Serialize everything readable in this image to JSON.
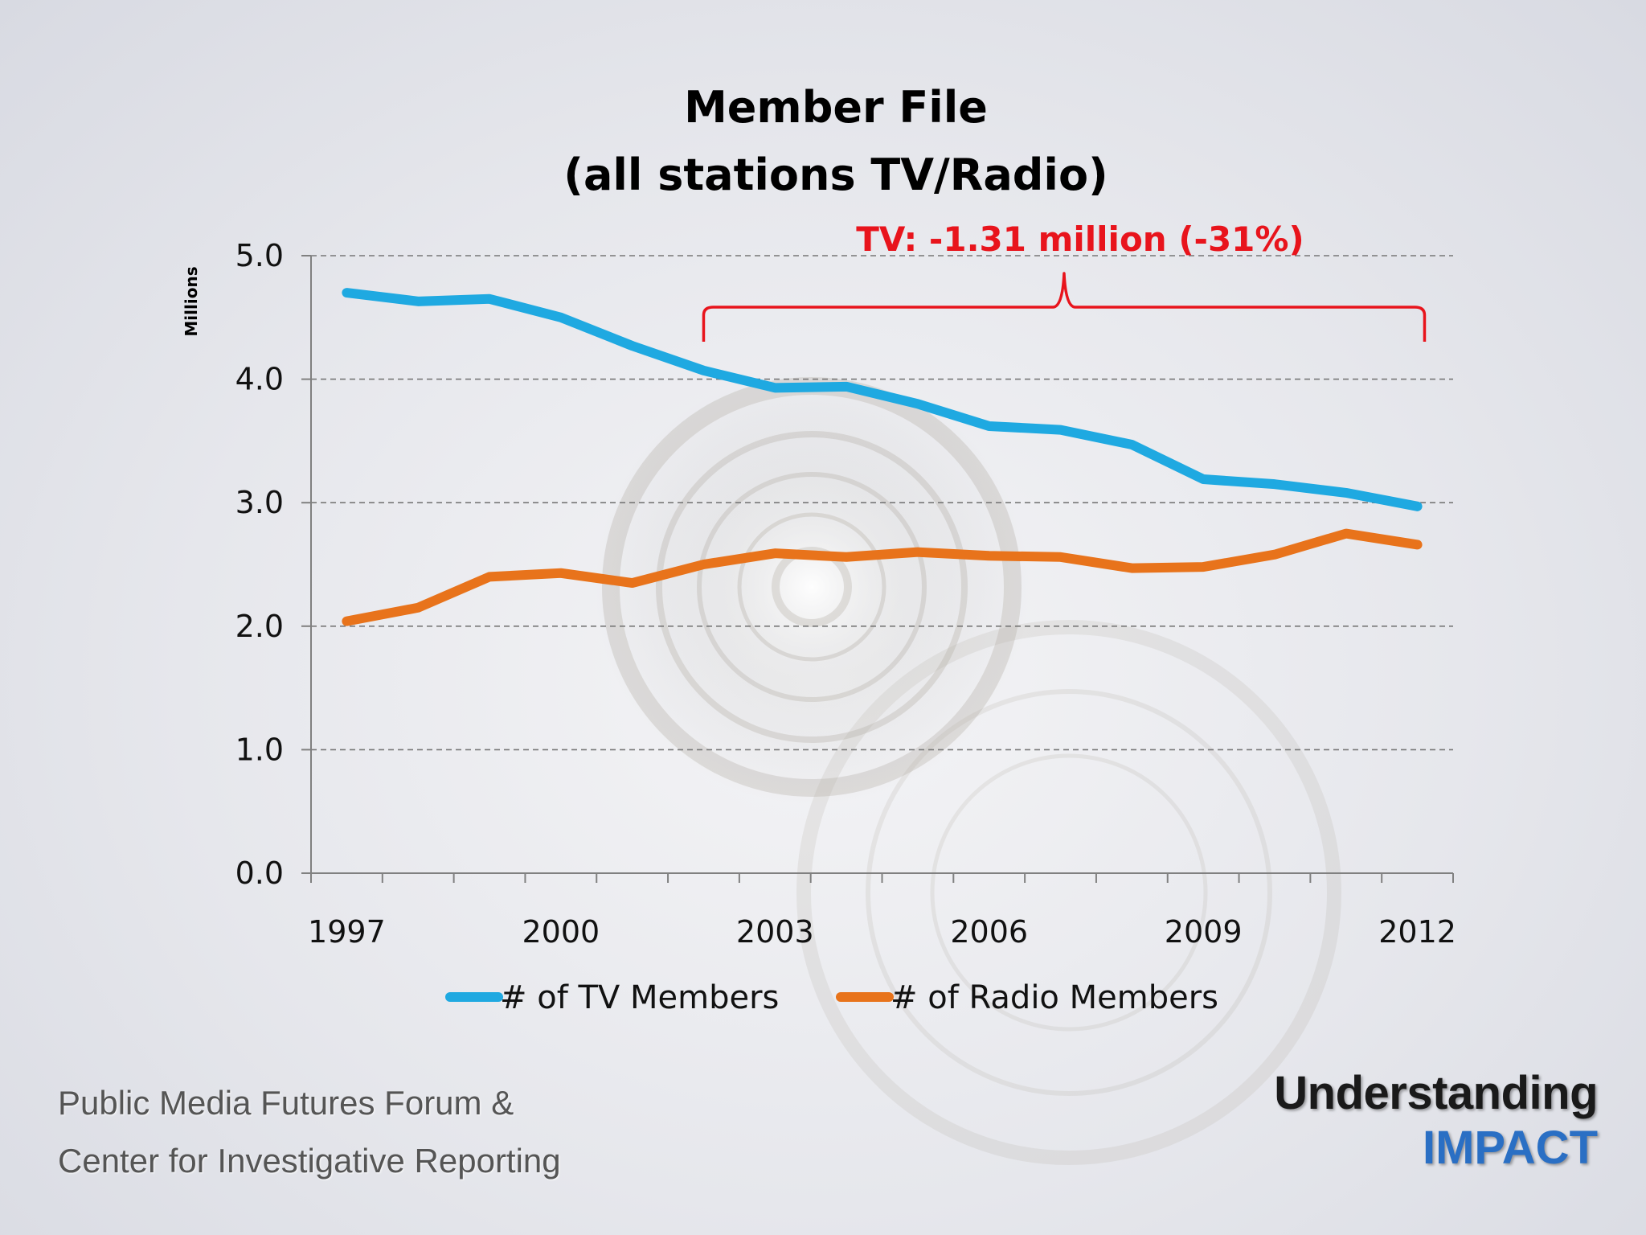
{
  "chart_data": {
    "type": "line",
    "title": [
      "Member File",
      "(all stations TV/Radio)"
    ],
    "ylabel": "Millions",
    "xlabel": "",
    "ylim": [
      0,
      5
    ],
    "yticks": [
      "0.0",
      "1.0",
      "2.0",
      "3.0",
      "4.0",
      "5.0"
    ],
    "xticks": [
      "1997",
      "2000",
      "2003",
      "2006",
      "2009",
      "2012"
    ],
    "x": [
      1997,
      1998,
      1999,
      2000,
      2001,
      2002,
      2003,
      2004,
      2005,
      2006,
      2007,
      2008,
      2009,
      2010,
      2011,
      2012
    ],
    "grid": "horizontal dashed",
    "legend_position": "bottom",
    "series": [
      {
        "name": "# of TV Members",
        "color": "#1fa9e1",
        "values": [
          4.7,
          4.63,
          4.65,
          4.5,
          4.27,
          4.07,
          3.93,
          3.94,
          3.8,
          3.62,
          3.59,
          3.47,
          3.19,
          3.15,
          3.08,
          2.97
        ]
      },
      {
        "name": "# of Radio Members",
        "color": "#e8731b",
        "values": [
          2.04,
          2.15,
          2.4,
          2.43,
          2.35,
          2.5,
          2.59,
          2.56,
          2.6,
          2.57,
          2.56,
          2.47,
          2.48,
          2.58,
          2.75,
          2.66
        ]
      }
    ],
    "annotation": {
      "text": "TV: -1.31 million (-31%)",
      "color": "#e8141c",
      "from_x": 2002,
      "to_x": 2012.1
    }
  },
  "footer": {
    "left_lines": [
      "Public Media Futures Forum &",
      "Center for Investigative Reporting"
    ],
    "brand_top": "Understanding",
    "brand_bottom": "IMPACT"
  }
}
